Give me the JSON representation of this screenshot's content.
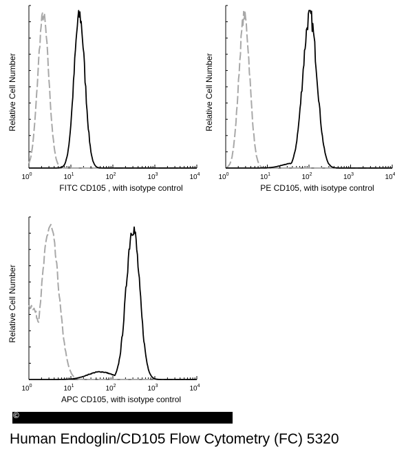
{
  "caption": "Human Endoglin/CD105  Flow Cytometry (FC) 5320",
  "copyright_symbol": "©",
  "colors": {
    "isotype": "#a8a8a8",
    "sample": "#000000"
  },
  "chart_data": [
    {
      "type": "line",
      "xscale": "log",
      "xlim": [
        1,
        10000
      ],
      "xticks": [
        "10^0",
        "10^1",
        "10^2",
        "10^3",
        "10^4"
      ],
      "xlabel": "FITC CD105 , with isotype control",
      "ylabel": "Relative Cell Number",
      "grid": false,
      "series": [
        {
          "style": "gray-dashed",
          "peak_x": 2.2,
          "width_decades": 0.13,
          "x": [
            1.1,
            1.4,
            1.8,
            2.2,
            2.7,
            3.3,
            4.2
          ],
          "y": [
            0.05,
            0.35,
            0.78,
            1.0,
            0.78,
            0.2,
            0.0
          ]
        },
        {
          "style": "black-solid",
          "peak_x": 16,
          "width_decades": 0.13,
          "x": [
            6,
            9,
            12,
            16,
            21,
            28,
            40
          ],
          "y": [
            0.0,
            0.3,
            0.8,
            1.0,
            0.75,
            0.2,
            0.0
          ]
        }
      ]
    },
    {
      "type": "line",
      "xscale": "log",
      "xlim": [
        1,
        10000
      ],
      "xticks": [
        "10^0",
        "10^1",
        "10^2",
        "10^3",
        "10^4"
      ],
      "xlabel": "PE CD105, with isotype control",
      "ylabel": "Relative Cell Number",
      "grid": false,
      "series": [
        {
          "style": "gray-dashed",
          "peak_x": 2.8,
          "width_decades": 0.13,
          "x": [
            1.4,
            1.9,
            2.4,
            2.8,
            3.5,
            4.5,
            6
          ],
          "y": [
            0.0,
            0.4,
            0.85,
            1.0,
            0.7,
            0.2,
            0.0
          ]
        },
        {
          "style": "black-solid",
          "peak_x": 105,
          "width_decades": 0.17,
          "x": [
            15,
            40,
            70,
            105,
            150,
            220,
            400
          ],
          "y": [
            0.02,
            0.2,
            0.75,
            1.0,
            0.75,
            0.2,
            0.0
          ]
        }
      ]
    },
    {
      "type": "line",
      "xscale": "log",
      "xlim": [
        1,
        10000
      ],
      "xticks": [
        "10^0",
        "10^1",
        "10^2",
        "10^3",
        "10^4"
      ],
      "xlabel": "APC CD105, with isotype control",
      "ylabel": "Relative Cell Number",
      "grid": false,
      "series": [
        {
          "style": "gray-dashed",
          "peak_x": 3.2,
          "width_decades": 0.2,
          "x": [
            1.1,
            1.5,
            2.5,
            3.2,
            4.5,
            7,
            12
          ],
          "y": [
            0.45,
            0.5,
            0.85,
            1.0,
            0.75,
            0.25,
            0.0
          ]
        },
        {
          "style": "black-solid",
          "peak_x": 300,
          "width_decades": 0.16,
          "x": [
            20,
            80,
            150,
            300,
            450,
            700,
            1200
          ],
          "y": [
            0.0,
            0.05,
            0.35,
            1.0,
            0.75,
            0.15,
            0.0
          ]
        }
      ]
    }
  ]
}
